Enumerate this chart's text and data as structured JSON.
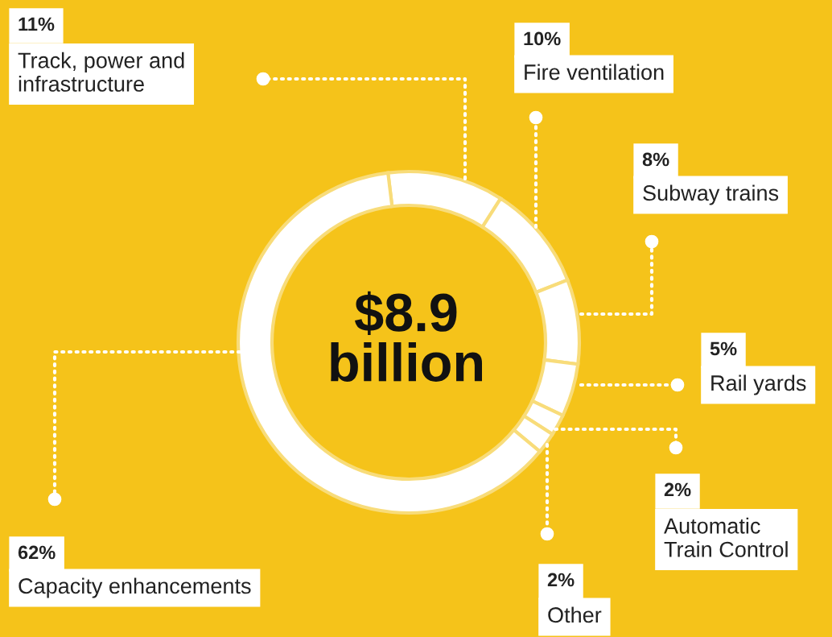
{
  "chart_data": {
    "type": "donut",
    "categories": [
      "Track, power and\ninfrastructure",
      "Fire ventilation",
      "Subway trains",
      "Rail yards",
      "Automatic\nTrain Control",
      "Other",
      "Capacity enhancements"
    ],
    "values": [
      11,
      10,
      8,
      5,
      2,
      2,
      62
    ],
    "value_labels": [
      "11%",
      "10%",
      "8%",
      "5%",
      "2%",
      "2%",
      "62%"
    ],
    "colors": [
      "#ffffff",
      "#ffffff",
      "#ffffff",
      "#ffffff",
      "#ffffff",
      "#ffffff",
      "#ffffff"
    ],
    "annotations": [
      "$8.9\nbillion"
    ],
    "legend": "right"
  }
}
